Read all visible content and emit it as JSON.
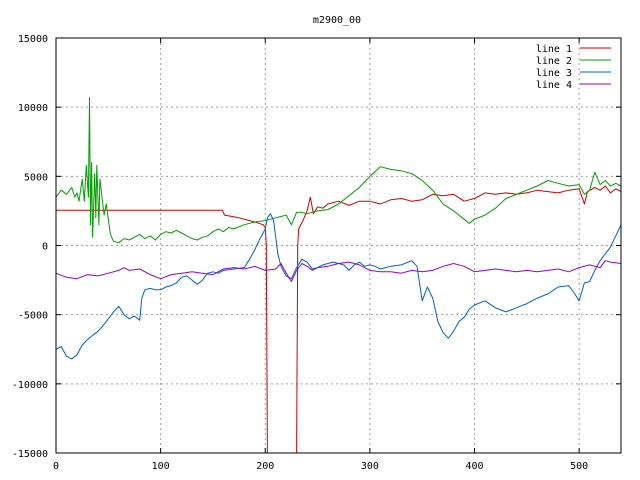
{
  "chart_data": {
    "type": "line",
    "title": "m2900_00",
    "xlabel": "",
    "ylabel": "",
    "xlim": [
      0,
      540
    ],
    "ylim": [
      -15000,
      15000
    ],
    "x_ticks": [
      0,
      100,
      200,
      300,
      400,
      500
    ],
    "y_ticks": [
      -15000,
      -10000,
      -5000,
      0,
      5000,
      10000,
      15000
    ],
    "x_tick_labels": [
      "0",
      "100",
      "200",
      "300",
      "400",
      "500"
    ],
    "y_tick_labels": [
      "-15000",
      "-10000",
      "-5000",
      "0",
      "5000",
      "10000",
      "15000"
    ],
    "grid": true,
    "legend_position": "top-right",
    "series": [
      {
        "name": "line 1",
        "color": "#cc0000",
        "points": [
          [
            0,
            2550
          ],
          [
            80,
            2550
          ],
          [
            159,
            2550
          ],
          [
            161,
            2200
          ],
          [
            175,
            2000
          ],
          [
            190,
            1700
          ],
          [
            198,
            1500
          ],
          [
            200,
            1300
          ],
          [
            201,
            0
          ],
          [
            202,
            -15000
          ],
          [
            203,
            -15000
          ],
          [
            205,
            -15000
          ],
          [
            210,
            -15000
          ],
          [
            215,
            -15000
          ],
          [
            220,
            -15000
          ],
          [
            225,
            -15000
          ],
          [
            230,
            -15000
          ],
          [
            231,
            0
          ],
          [
            232,
            1200
          ],
          [
            236,
            1800
          ],
          [
            240,
            2500
          ],
          [
            243,
            3500
          ],
          [
            246,
            2300
          ],
          [
            250,
            2800
          ],
          [
            255,
            2700
          ],
          [
            260,
            3000
          ],
          [
            270,
            3200
          ],
          [
            280,
            2900
          ],
          [
            290,
            3200
          ],
          [
            300,
            3200
          ],
          [
            310,
            3000
          ],
          [
            320,
            3300
          ],
          [
            330,
            3400
          ],
          [
            340,
            3200
          ],
          [
            350,
            3300
          ],
          [
            360,
            3700
          ],
          [
            370,
            3600
          ],
          [
            380,
            3700
          ],
          [
            390,
            3200
          ],
          [
            400,
            3400
          ],
          [
            410,
            3800
          ],
          [
            420,
            3700
          ],
          [
            430,
            3800
          ],
          [
            440,
            3700
          ],
          [
            450,
            3800
          ],
          [
            460,
            4000
          ],
          [
            470,
            3900
          ],
          [
            480,
            3800
          ],
          [
            490,
            4000
          ],
          [
            500,
            4100
          ],
          [
            505,
            3000
          ],
          [
            508,
            3900
          ],
          [
            515,
            4200
          ],
          [
            520,
            4000
          ],
          [
            525,
            4300
          ],
          [
            530,
            3800
          ],
          [
            535,
            4100
          ],
          [
            540,
            3900
          ]
        ]
      },
      {
        "name": "line 2",
        "color": "#00a000",
        "points": [
          [
            0,
            3500
          ],
          [
            5,
            4000
          ],
          [
            10,
            3700
          ],
          [
            15,
            4200
          ],
          [
            18,
            3500
          ],
          [
            20,
            3800
          ],
          [
            22,
            3200
          ],
          [
            25,
            4800
          ],
          [
            27,
            3200
          ],
          [
            29,
            5800
          ],
          [
            31,
            3500
          ],
          [
            32,
            10700
          ],
          [
            33,
            1500
          ],
          [
            34,
            6000
          ],
          [
            35,
            600
          ],
          [
            37,
            5200
          ],
          [
            38,
            2000
          ],
          [
            39,
            5800
          ],
          [
            41,
            1500
          ],
          [
            42,
            4800
          ],
          [
            44,
            3500
          ],
          [
            46,
            2200
          ],
          [
            48,
            3000
          ],
          [
            52,
            800
          ],
          [
            55,
            300
          ],
          [
            60,
            200
          ],
          [
            65,
            500
          ],
          [
            70,
            400
          ],
          [
            75,
            600
          ],
          [
            80,
            800
          ],
          [
            85,
            500
          ],
          [
            90,
            700
          ],
          [
            95,
            400
          ],
          [
            100,
            800
          ],
          [
            105,
            1000
          ],
          [
            110,
            900
          ],
          [
            115,
            1100
          ],
          [
            120,
            900
          ],
          [
            125,
            700
          ],
          [
            130,
            500
          ],
          [
            135,
            400
          ],
          [
            140,
            600
          ],
          [
            145,
            700
          ],
          [
            150,
            1000
          ],
          [
            155,
            1200
          ],
          [
            160,
            1000
          ],
          [
            165,
            1300
          ],
          [
            170,
            1200
          ],
          [
            180,
            1500
          ],
          [
            190,
            1700
          ],
          [
            200,
            1800
          ],
          [
            210,
            2000
          ],
          [
            220,
            2200
          ],
          [
            225,
            1500
          ],
          [
            230,
            2400
          ],
          [
            235,
            2400
          ],
          [
            240,
            2300
          ],
          [
            250,
            2500
          ],
          [
            260,
            2600
          ],
          [
            270,
            3000
          ],
          [
            280,
            3600
          ],
          [
            290,
            4200
          ],
          [
            300,
            5000
          ],
          [
            310,
            5700
          ],
          [
            320,
            5500
          ],
          [
            330,
            5400
          ],
          [
            340,
            5200
          ],
          [
            350,
            4700
          ],
          [
            360,
            4000
          ],
          [
            370,
            3000
          ],
          [
            380,
            2500
          ],
          [
            390,
            1900
          ],
          [
            395,
            1600
          ],
          [
            400,
            1900
          ],
          [
            410,
            2200
          ],
          [
            420,
            2700
          ],
          [
            430,
            3400
          ],
          [
            440,
            3700
          ],
          [
            450,
            4000
          ],
          [
            460,
            4300
          ],
          [
            470,
            4700
          ],
          [
            480,
            4500
          ],
          [
            490,
            4300
          ],
          [
            500,
            4400
          ],
          [
            505,
            3700
          ],
          [
            510,
            4000
          ],
          [
            515,
            5300
          ],
          [
            520,
            4400
          ],
          [
            525,
            4700
          ],
          [
            530,
            4300
          ],
          [
            535,
            4500
          ],
          [
            540,
            4300
          ]
        ]
      },
      {
        "name": "line 3",
        "color": "#0060d0",
        "points": [
          [
            0,
            -7500
          ],
          [
            5,
            -7300
          ],
          [
            10,
            -8000
          ],
          [
            15,
            -8200
          ],
          [
            20,
            -7900
          ],
          [
            25,
            -7200
          ],
          [
            30,
            -6800
          ],
          [
            35,
            -6500
          ],
          [
            40,
            -6200
          ],
          [
            45,
            -5800
          ],
          [
            50,
            -5300
          ],
          [
            55,
            -4800
          ],
          [
            60,
            -4400
          ],
          [
            65,
            -5000
          ],
          [
            70,
            -5300
          ],
          [
            75,
            -5100
          ],
          [
            80,
            -5400
          ],
          [
            82,
            -3800
          ],
          [
            85,
            -3200
          ],
          [
            90,
            -3100
          ],
          [
            95,
            -3200
          ],
          [
            100,
            -3200
          ],
          [
            105,
            -3000
          ],
          [
            110,
            -2900
          ],
          [
            115,
            -2700
          ],
          [
            120,
            -2300
          ],
          [
            125,
            -2200
          ],
          [
            130,
            -2500
          ],
          [
            135,
            -2800
          ],
          [
            140,
            -2500
          ],
          [
            145,
            -2000
          ],
          [
            150,
            -1900
          ],
          [
            155,
            -2000
          ],
          [
            160,
            -1800
          ],
          [
            170,
            -1700
          ],
          [
            180,
            -1600
          ],
          [
            185,
            -1000
          ],
          [
            190,
            -300
          ],
          [
            195,
            500
          ],
          [
            200,
            1200
          ],
          [
            202,
            2000
          ],
          [
            205,
            2300
          ],
          [
            208,
            1800
          ],
          [
            212,
            -600
          ],
          [
            215,
            -1500
          ],
          [
            220,
            -2200
          ],
          [
            225,
            -2400
          ],
          [
            230,
            -1600
          ],
          [
            235,
            -1000
          ],
          [
            240,
            -1200
          ],
          [
            245,
            -1700
          ],
          [
            250,
            -1600
          ],
          [
            255,
            -1400
          ],
          [
            260,
            -1300
          ],
          [
            265,
            -1200
          ],
          [
            270,
            -1300
          ],
          [
            275,
            -1400
          ],
          [
            280,
            -1800
          ],
          [
            285,
            -1400
          ],
          [
            290,
            -1200
          ],
          [
            295,
            -1500
          ],
          [
            300,
            -1400
          ],
          [
            305,
            -1500
          ],
          [
            310,
            -1700
          ],
          [
            315,
            -1600
          ],
          [
            320,
            -1500
          ],
          [
            330,
            -1400
          ],
          [
            340,
            -1100
          ],
          [
            345,
            -1500
          ],
          [
            350,
            -4000
          ],
          [
            355,
            -3000
          ],
          [
            360,
            -3800
          ],
          [
            365,
            -5500
          ],
          [
            370,
            -6300
          ],
          [
            375,
            -6700
          ],
          [
            380,
            -6200
          ],
          [
            385,
            -5500
          ],
          [
            390,
            -5200
          ],
          [
            395,
            -4600
          ],
          [
            400,
            -4300
          ],
          [
            410,
            -4000
          ],
          [
            420,
            -4500
          ],
          [
            430,
            -4800
          ],
          [
            440,
            -4500
          ],
          [
            450,
            -4200
          ],
          [
            460,
            -3800
          ],
          [
            470,
            -3500
          ],
          [
            480,
            -3000
          ],
          [
            490,
            -2900
          ],
          [
            495,
            -3400
          ],
          [
            500,
            -4000
          ],
          [
            505,
            -2700
          ],
          [
            510,
            -2600
          ],
          [
            515,
            -1800
          ],
          [
            520,
            -1100
          ],
          [
            525,
            -600
          ],
          [
            530,
            -100
          ],
          [
            535,
            700
          ],
          [
            540,
            1500
          ]
        ]
      },
      {
        "name": "line 4",
        "color": "#9900cc",
        "points": [
          [
            0,
            -2000
          ],
          [
            10,
            -2300
          ],
          [
            20,
            -2400
          ],
          [
            30,
            -2100
          ],
          [
            40,
            -2200
          ],
          [
            50,
            -2000
          ],
          [
            60,
            -1800
          ],
          [
            65,
            -1600
          ],
          [
            70,
            -1800
          ],
          [
            80,
            -1700
          ],
          [
            90,
            -2100
          ],
          [
            100,
            -2400
          ],
          [
            110,
            -2100
          ],
          [
            120,
            -2000
          ],
          [
            130,
            -1900
          ],
          [
            140,
            -2000
          ],
          [
            150,
            -2100
          ],
          [
            160,
            -1700
          ],
          [
            170,
            -1600
          ],
          [
            180,
            -1700
          ],
          [
            190,
            -1500
          ],
          [
            200,
            -1800
          ],
          [
            210,
            -1700
          ],
          [
            215,
            -1300
          ],
          [
            220,
            -2000
          ],
          [
            225,
            -2600
          ],
          [
            230,
            -1800
          ],
          [
            235,
            -1300
          ],
          [
            240,
            -1500
          ],
          [
            245,
            -1800
          ],
          [
            250,
            -1600
          ],
          [
            260,
            -1500
          ],
          [
            270,
            -1300
          ],
          [
            280,
            -1200
          ],
          [
            290,
            -1400
          ],
          [
            300,
            -1800
          ],
          [
            310,
            -1900
          ],
          [
            320,
            -1900
          ],
          [
            330,
            -2000
          ],
          [
            340,
            -1800
          ],
          [
            350,
            -1900
          ],
          [
            360,
            -1800
          ],
          [
            370,
            -1500
          ],
          [
            380,
            -1300
          ],
          [
            390,
            -1500
          ],
          [
            400,
            -1900
          ],
          [
            410,
            -1800
          ],
          [
            420,
            -1700
          ],
          [
            430,
            -1800
          ],
          [
            440,
            -1900
          ],
          [
            450,
            -1800
          ],
          [
            460,
            -1900
          ],
          [
            470,
            -1800
          ],
          [
            480,
            -1700
          ],
          [
            490,
            -1900
          ],
          [
            500,
            -1600
          ],
          [
            510,
            -1400
          ],
          [
            520,
            -1600
          ],
          [
            525,
            -1100
          ],
          [
            530,
            -1200
          ],
          [
            540,
            -1300
          ]
        ]
      }
    ]
  }
}
